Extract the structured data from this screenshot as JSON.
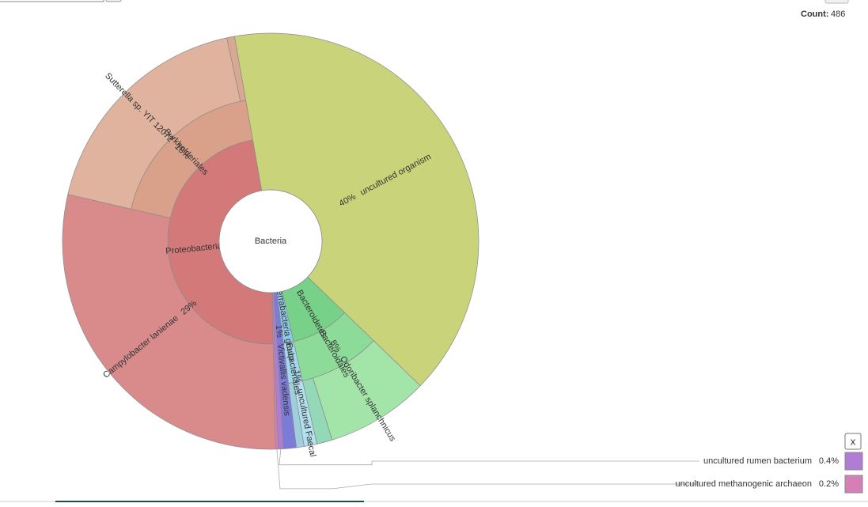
{
  "chart_data": {
    "type": "sunburst",
    "center_label": "Bacteria",
    "count_label": "Count:",
    "count": 486,
    "close_button": "x",
    "nodes": [
      {
        "name": "uncultured organism",
        "color": "#c9d47a",
        "value": 40,
        "value_label": "40%"
      },
      {
        "name": "Bacteroidetes",
        "color": "#78d189",
        "children": [
          {
            "name": "Bacteroidales",
            "color": "#8ddb98",
            "children": [
              {
                "name": "Odoribacter splanchnicus",
                "color": "#a3e4a8",
                "value": 8,
                "value_label": "8%"
              },
              {
                "color": "#93d9b8",
                "value": 1.2
              }
            ]
          }
        ]
      },
      {
        "name": "Terrabacteria group",
        "color": "#8ec9e6",
        "children": [
          {
            "name": "Eubacteriales",
            "color": "#a2d6ea",
            "children": [
              {
                "name": "uncultured Faecal",
                "color": "#b3e0ee",
                "value": 1,
                "value_label": "1%"
              },
              {
                "color": "#9fcfdc",
                "value": 0.6
              }
            ]
          }
        ]
      },
      {
        "name": "Victivallis vadensis",
        "color": "#7d7bd8",
        "value": 1,
        "value_label": "1%"
      },
      {
        "name": "uncultured rumen bacterium",
        "color": "#b07cd6",
        "value": 0.4,
        "value_label": "0.4%"
      },
      {
        "name": "uncultured methanogenic archaeon",
        "color": "#d47fb5",
        "value": 0.2,
        "value_label": "0.2%"
      },
      {
        "name": "Proteobacteria",
        "color": "#d4797a",
        "children": [
          {
            "name": "Campylobacter lanienae",
            "color": "#d98b8b",
            "value": 29,
            "value_label": "29%"
          },
          {
            "name": "Burkholderiales",
            "color": "#d9a08a",
            "children": [
              {
                "name": "Sutterella sp. YIT 12072",
                "color": "#e0b39f",
                "value": 18,
                "value_label": "18%"
              },
              {
                "color": "#d9a891",
                "value": 0.6
              }
            ]
          }
        ]
      }
    ]
  }
}
